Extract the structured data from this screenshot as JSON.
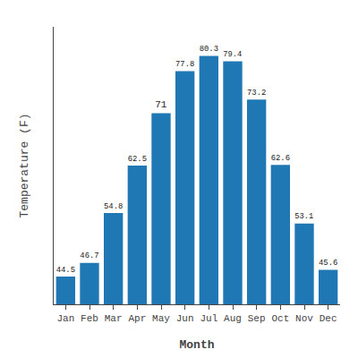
{
  "chart_data": {
    "type": "bar",
    "categories": [
      "Jan",
      "Feb",
      "Mar",
      "Apr",
      "May",
      "Jun",
      "Jul",
      "Aug",
      "Sep",
      "Oct",
      "Nov",
      "Dec"
    ],
    "values": [
      44.5,
      46.7,
      54.8,
      62.5,
      71.0,
      77.8,
      80.3,
      79.4,
      73.2,
      62.6,
      53.1,
      45.6
    ],
    "xlabel": "Month",
    "ylabel": "Temperature (F)",
    "ylim": [
      40,
      85
    ],
    "yticks": [],
    "grid": false,
    "data_labels": true,
    "tick_labels": "x"
  }
}
